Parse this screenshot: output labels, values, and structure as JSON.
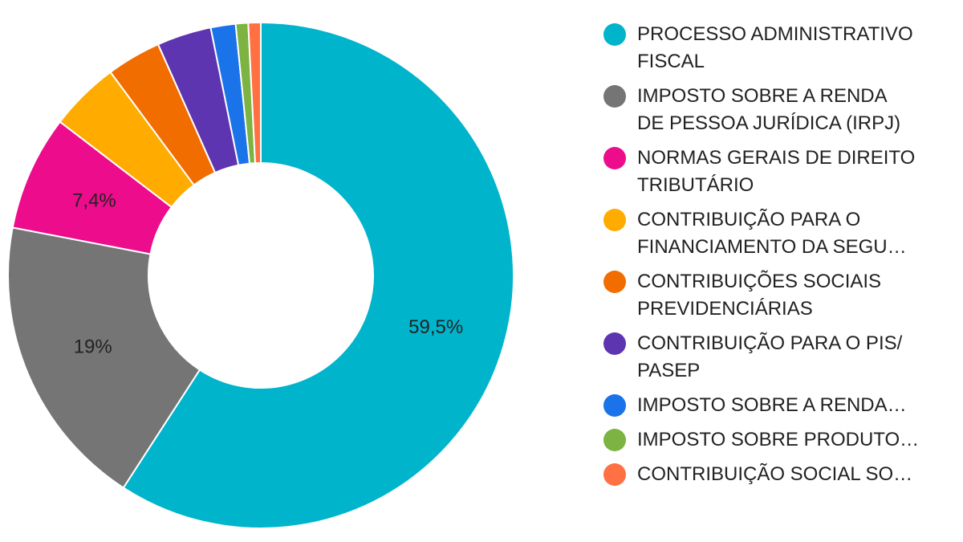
{
  "chart_data": {
    "type": "pie",
    "donut": true,
    "title": "",
    "legend_position": "right",
    "series": [
      {
        "name": "PROCESSO ADMINISTRATIVO FISCAL",
        "legend_lines": [
          "PROCESSO ADMINISTRATIVO",
          "FISCAL"
        ],
        "value": 59.5,
        "label": "59,5%",
        "color": "#00B4CC"
      },
      {
        "name": "IMPOSTO SOBRE A RENDA DE PESSOA JURÍDICA (IRPJ)",
        "legend_lines": [
          "IMPOSTO SOBRE A RENDA",
          "DE PESSOA JURÍDICA (IRPJ)"
        ],
        "value": 19.0,
        "label": "19%",
        "color": "#757575"
      },
      {
        "name": "NORMAS GERAIS DE DIREITO TRIBUTÁRIO",
        "legend_lines": [
          "NORMAS GERAIS DE DIREITO",
          "TRIBUTÁRIO"
        ],
        "value": 7.4,
        "label": "7,4%",
        "color": "#EC0C8C"
      },
      {
        "name": "CONTRIBUIÇÃO PARA O FINANCIAMENTO DA SEGU…",
        "legend_lines": [
          "CONTRIBUIÇÃO PARA O",
          "FINANCIAMENTO DA SEGU…"
        ],
        "value": 4.5,
        "label": "",
        "color": "#FFAB00"
      },
      {
        "name": "CONTRIBUIÇÕES SOCIAIS PREVIDENCIÁRIAS",
        "legend_lines": [
          "CONTRIBUIÇÕES SOCIAIS",
          "PREVIDENCIÁRIAS"
        ],
        "value": 3.5,
        "label": "",
        "color": "#F26D00"
      },
      {
        "name": "CONTRIBUIÇÃO PARA O PIS/ PASEP",
        "legend_lines": [
          "CONTRIBUIÇÃO PARA O PIS/",
          "PASEP"
        ],
        "value": 3.5,
        "label": "",
        "color": "#5E35B1"
      },
      {
        "name": "IMPOSTO SOBRE A RENDA…",
        "legend_lines": [
          "IMPOSTO SOBRE A RENDA…"
        ],
        "value": 1.6,
        "label": "",
        "color": "#1A73E8"
      },
      {
        "name": "IMPOSTO SOBRE PRODUTO…",
        "legend_lines": [
          "IMPOSTO SOBRE PRODUTO…"
        ],
        "value": 0.8,
        "label": "",
        "color": "#7CB342"
      },
      {
        "name": "CONTRIBUIÇÃO SOCIAL SO…",
        "legend_lines": [
          "CONTRIBUIÇÃO SOCIAL SO…"
        ],
        "value": 0.8,
        "label": "",
        "color": "#FF7043"
      }
    ]
  }
}
